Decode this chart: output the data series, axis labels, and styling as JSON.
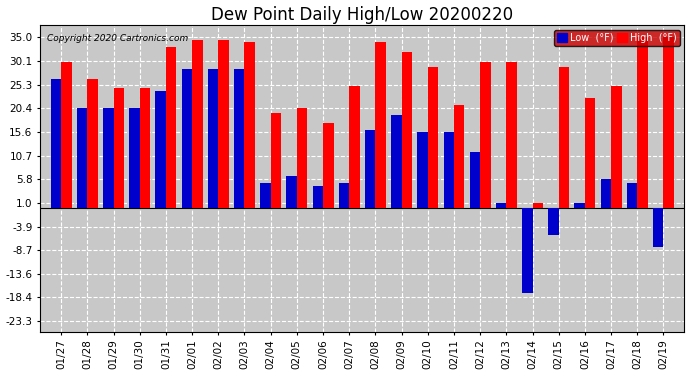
{
  "title": "Dew Point Daily High/Low 20200220",
  "copyright": "Copyright 2020 Cartronics.com",
  "dates": [
    "01/27",
    "01/28",
    "01/29",
    "01/30",
    "01/31",
    "02/01",
    "02/02",
    "02/03",
    "02/04",
    "02/05",
    "02/06",
    "02/07",
    "02/08",
    "02/09",
    "02/10",
    "02/11",
    "02/12",
    "02/13",
    "02/14",
    "02/15",
    "02/16",
    "02/17",
    "02/18",
    "02/19"
  ],
  "high": [
    30.0,
    26.5,
    24.5,
    24.5,
    33.0,
    34.5,
    34.5,
    34.0,
    19.5,
    20.5,
    17.5,
    25.0,
    34.0,
    32.0,
    29.0,
    21.0,
    30.0,
    30.0,
    1.0,
    29.0,
    22.5,
    25.0,
    35.0,
    35.0
  ],
  "low": [
    26.5,
    20.5,
    20.5,
    20.5,
    24.0,
    28.5,
    28.5,
    28.5,
    5.0,
    6.5,
    4.5,
    5.0,
    16.0,
    19.0,
    15.5,
    15.5,
    11.5,
    1.0,
    -17.5,
    -5.5,
    1.0,
    6.0,
    5.0,
    -8.0
  ],
  "high_color": "#ff0000",
  "low_color": "#0000cc",
  "bg_color": "#ffffff",
  "plot_bg_color": "#c8c8c8",
  "yticks": [
    35.0,
    30.1,
    25.3,
    20.4,
    15.6,
    10.7,
    5.8,
    1.0,
    -3.9,
    -8.7,
    -13.6,
    -18.4,
    -23.3
  ],
  "ylim": [
    -25.5,
    37.5
  ],
  "bar_width": 0.4,
  "title_fontsize": 12,
  "tick_fontsize": 7.5,
  "legend_low_label": "Low  (°F)",
  "legend_high_label": "High  (°F)"
}
